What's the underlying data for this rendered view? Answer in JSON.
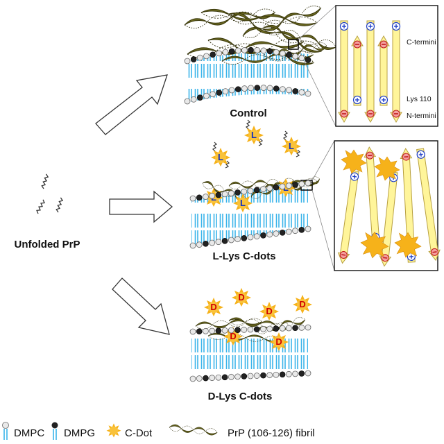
{
  "labels": {
    "unfolded": "Unfolded PrP",
    "control": "Control",
    "llys": "L-Lys C-dots",
    "dlys": "D-Lys C-dots"
  },
  "inset_control": {
    "c_termini": "C-termini",
    "lys110": "Lys 110",
    "n_termini": "N-termini"
  },
  "dot_letters": {
    "l": "L",
    "d": "D"
  },
  "legend": {
    "dmpc": "DMPC",
    "dmpg": "DMPG",
    "cdot": "C-Dot",
    "fibril": "PrP (106-126) fibril"
  },
  "colors": {
    "membrane_blue": "#3ab4ea",
    "dmpg_head": "#222222",
    "dmpc_head": "#e9e9e9",
    "cdot": "#f6b21a",
    "fibril": "#5c5a1c",
    "strand": "#fff59a",
    "plus_blue": "#2040c8",
    "minus_red": "#d02020"
  }
}
